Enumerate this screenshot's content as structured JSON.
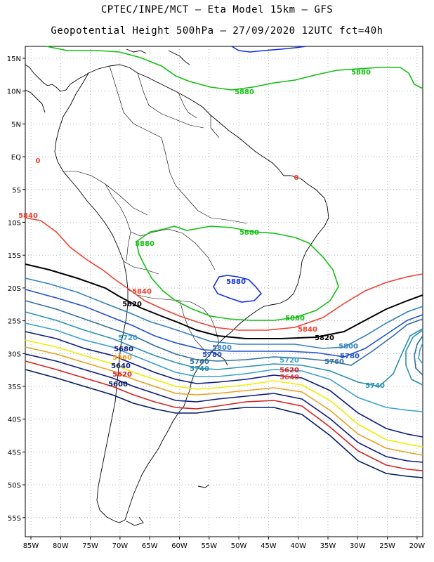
{
  "title_line1": "CPTEC/INPE/MCT –  Eta Model 15km – GFS",
  "title_line2": "Geopotential Height 500hPa – 27/09/2020 12UTC fct=40h",
  "lat_labels": [
    "15N",
    "10N",
    "5N",
    "EQ",
    "5S",
    "10S",
    "15S",
    "20S",
    "25S",
    "30S",
    "35S",
    "40S",
    "45S",
    "50S",
    "55S"
  ],
  "lon_labels": [
    "85W",
    "80W",
    "75W",
    "70W",
    "65W",
    "60W",
    "55W",
    "50W",
    "45W",
    "40W",
    "35W",
    "30W",
    "25W",
    "20W"
  ],
  "colors": {
    "c5580": "#1e90ff",
    "c5600": "#001a66",
    "c5620": "#d62020",
    "c5640": "#ff5030",
    "c5660": "#e8a020",
    "c5680": "#eeee00",
    "c5700": "#0a1a80",
    "c5720": "#3aa0d0",
    "c5740": "#2a90b0",
    "c5760": "#3070a0",
    "c5780": "#2050d0",
    "c5800": "#3080c0",
    "c5820": "#000000",
    "c5840": "#f04030",
    "c5860": "#10c010",
    "c5880": "#1030e0",
    "coast": "#000000"
  },
  "contour_labels": [
    {
      "text": "5880",
      "color": "#10c010"
    },
    {
      "text": "5880",
      "color": "#10c010"
    },
    {
      "text": "5880",
      "color": "#10c010"
    },
    {
      "text": "5880",
      "color": "#10c010"
    },
    {
      "text": "5880",
      "color": "#10c010"
    },
    {
      "text": "5880",
      "color": "#1030e0"
    },
    {
      "text": "5840",
      "color": "#f04030"
    },
    {
      "text": "5840",
      "color": "#f04030"
    },
    {
      "text": "5820",
      "color": "#000000"
    },
    {
      "text": "5820",
      "color": "#000000"
    },
    {
      "text": "5800",
      "color": "#3080c0"
    },
    {
      "text": "5800",
      "color": "#3080c0"
    },
    {
      "text": "5780",
      "color": "#2050d0"
    },
    {
      "text": "5780",
      "color": "#2050d0"
    },
    {
      "text": "5760",
      "color": "#3070a0"
    },
    {
      "text": "5760",
      "color": "#3070a0"
    },
    {
      "text": "5740",
      "color": "#2a90b0"
    },
    {
      "text": "5740",
      "color": "#2a90b0"
    },
    {
      "text": "5720",
      "color": "#3aa0d0"
    },
    {
      "text": "5720",
      "color": "#3aa0d0"
    },
    {
      "text": "5680",
      "color": "#0a1a80"
    },
    {
      "text": "5660",
      "color": "#e8a020"
    },
    {
      "text": "5640",
      "color": "#0a1a80"
    },
    {
      "text": "5620",
      "color": "#d62020"
    },
    {
      "text": "5600",
      "color": "#001a66"
    },
    {
      "text": "5620",
      "color": "#d62020"
    },
    {
      "text": "5640",
      "color": "#f04030"
    },
    {
      "text": "5840",
      "color": "#f04030"
    },
    {
      "text": "0",
      "color": "#f04030"
    },
    {
      "text": "0",
      "color": "#f04030"
    }
  ]
}
